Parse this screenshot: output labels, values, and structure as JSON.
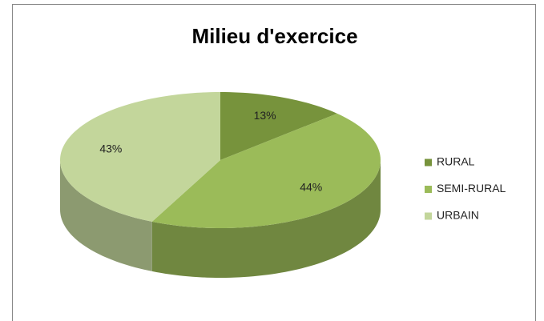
{
  "chart_data": {
    "type": "pie",
    "title": "Milieu d'exercice",
    "categories": [
      "RURAL",
      "SEMI-RURAL",
      "URBAIN"
    ],
    "values": [
      13,
      44,
      43
    ],
    "value_labels": [
      "13%",
      "44%",
      "43%"
    ],
    "colors": [
      "#77933c",
      "#9bbb59",
      "#c3d69b"
    ],
    "legend": "right"
  }
}
